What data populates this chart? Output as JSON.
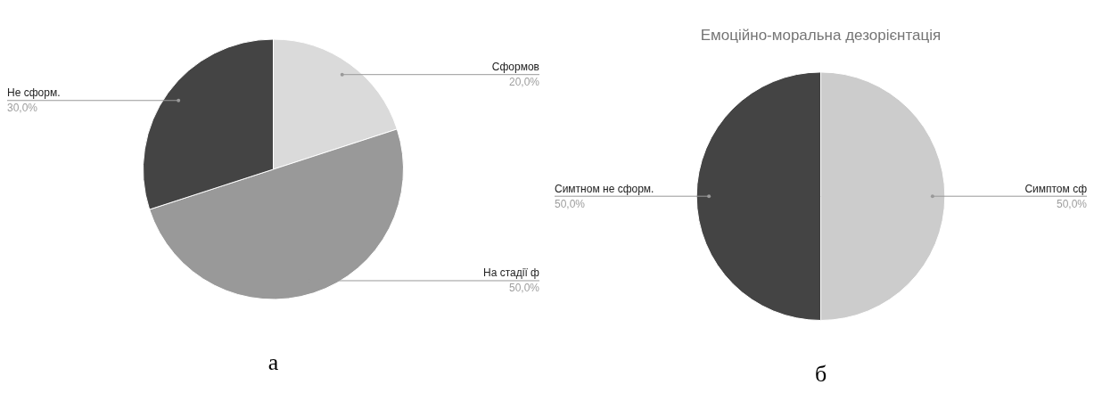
{
  "chart_data": [
    {
      "type": "pie",
      "categories": [
        "Сформов",
        "На стадії ф",
        "Не сформ."
      ],
      "values": [
        20,
        50,
        30
      ],
      "colors": [
        "#dadada",
        "#999999",
        "#444444"
      ],
      "value_labels": [
        "20,0%",
        "50,0%",
        "30,0%"
      ],
      "legend": false,
      "annotations": [
        "а"
      ]
    },
    {
      "type": "pie",
      "title": "Емоційно-моральна дезорієнтація",
      "categories": [
        "Симптом сф",
        "Симтном не сформ."
      ],
      "values": [
        50,
        50
      ],
      "colors": [
        "#cccccc",
        "#444444"
      ],
      "value_labels": [
        "50,0%",
        "50,0%"
      ],
      "legend": false,
      "annotations": [
        "б"
      ]
    }
  ]
}
